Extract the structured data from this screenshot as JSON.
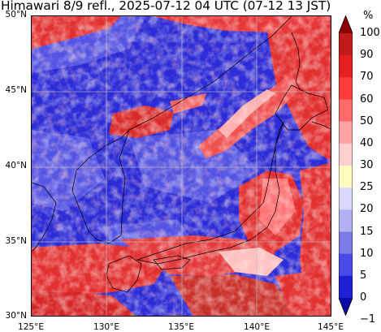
{
  "title": "Himawari 8/9 refl., 2025-07-12 04 UTC (07-12 13 JST)",
  "map": {
    "lon_range": [
      125,
      145
    ],
    "lat_range": [
      30,
      50
    ],
    "gridlines": true,
    "lat_labels": [
      "50°N",
      "45°N",
      "40°N",
      "35°N",
      "30°N"
    ],
    "lon_labels": [
      "125°E",
      "130°E",
      "135°E",
      "140°E",
      "145°E"
    ]
  },
  "colorbar": {
    "unit": "%",
    "labels": [
      "100",
      "90",
      "70",
      "60",
      "50",
      "40",
      "30",
      "25",
      "20",
      "15",
      "10",
      "5",
      "0",
      "−1"
    ],
    "colors": [
      "#8b0000",
      "#c21b1b",
      "#e62020",
      "#ff3b3b",
      "#ff6b6b",
      "#ffa3a3",
      "#ffd0cf",
      "#fffbbf",
      "#d8d8ff",
      "#b0b0f2",
      "#7b7be6",
      "#4a4ae6",
      "#1f1fd6",
      "#0a0aa8"
    ]
  }
}
